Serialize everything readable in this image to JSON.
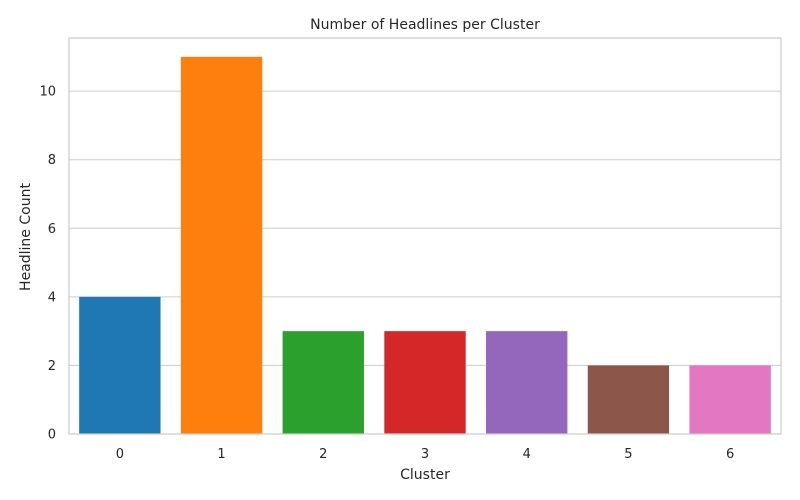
{
  "chart_data": {
    "type": "bar",
    "title": "Number of Headlines per Cluster",
    "xlabel": "Cluster",
    "ylabel": "Headline Count",
    "categories": [
      "0",
      "1",
      "2",
      "3",
      "4",
      "5",
      "6"
    ],
    "values": [
      4,
      11,
      3,
      3,
      3,
      2,
      2
    ],
    "colors": [
      "#1f77b4",
      "#ff7f0e",
      "#2ca02c",
      "#d62728",
      "#9467bd",
      "#8c564b",
      "#e377c2"
    ],
    "ylim": [
      0,
      11.55
    ],
    "yticks": [
      0,
      2,
      4,
      6,
      8,
      10
    ],
    "grid": true,
    "style": {
      "background": "#ffffff",
      "axes_edge_color": "#cccccc",
      "grid_color": "#cccccc",
      "text_color": "#262626"
    }
  }
}
